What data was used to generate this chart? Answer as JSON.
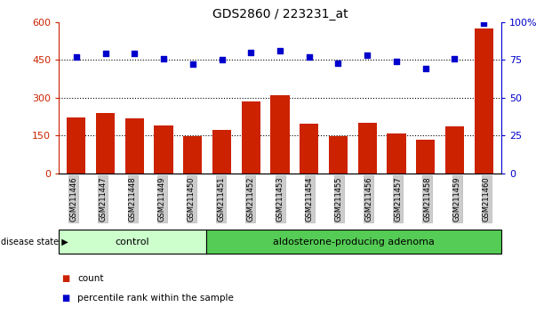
{
  "title": "GDS2860 / 223231_at",
  "samples": [
    "GSM211446",
    "GSM211447",
    "GSM211448",
    "GSM211449",
    "GSM211450",
    "GSM211451",
    "GSM211452",
    "GSM211453",
    "GSM211454",
    "GSM211455",
    "GSM211456",
    "GSM211457",
    "GSM211458",
    "GSM211459",
    "GSM211460"
  ],
  "counts": [
    220,
    240,
    218,
    190,
    148,
    173,
    285,
    310,
    195,
    148,
    200,
    158,
    133,
    185,
    575
  ],
  "percentiles": [
    77,
    79,
    79,
    76,
    72,
    75,
    80,
    81,
    77,
    73,
    78,
    74,
    69,
    76,
    99
  ],
  "control_count": 5,
  "bar_color": "#cc2200",
  "dot_color": "#0000cc",
  "ylim_left": [
    0,
    600
  ],
  "ylim_right": [
    0,
    100
  ],
  "yticks_left": [
    0,
    150,
    300,
    450,
    600
  ],
  "ytick_labels_left": [
    "0",
    "150",
    "300",
    "450",
    "600"
  ],
  "yticks_right": [
    0,
    25,
    50,
    75,
    100
  ],
  "ytick_labels_right": [
    "0",
    "25",
    "50",
    "75",
    "100%"
  ],
  "grid_values": [
    150,
    300,
    450
  ],
  "control_label": "control",
  "adenoma_label": "aldosterone-producing adenoma",
  "disease_label": "disease state",
  "legend_count": "count",
  "legend_percentile": "percentile rank within the sample",
  "control_color": "#ccffcc",
  "adenoma_color": "#55cc55",
  "tick_bg_color": "#cccccc",
  "bar_width": 0.65
}
